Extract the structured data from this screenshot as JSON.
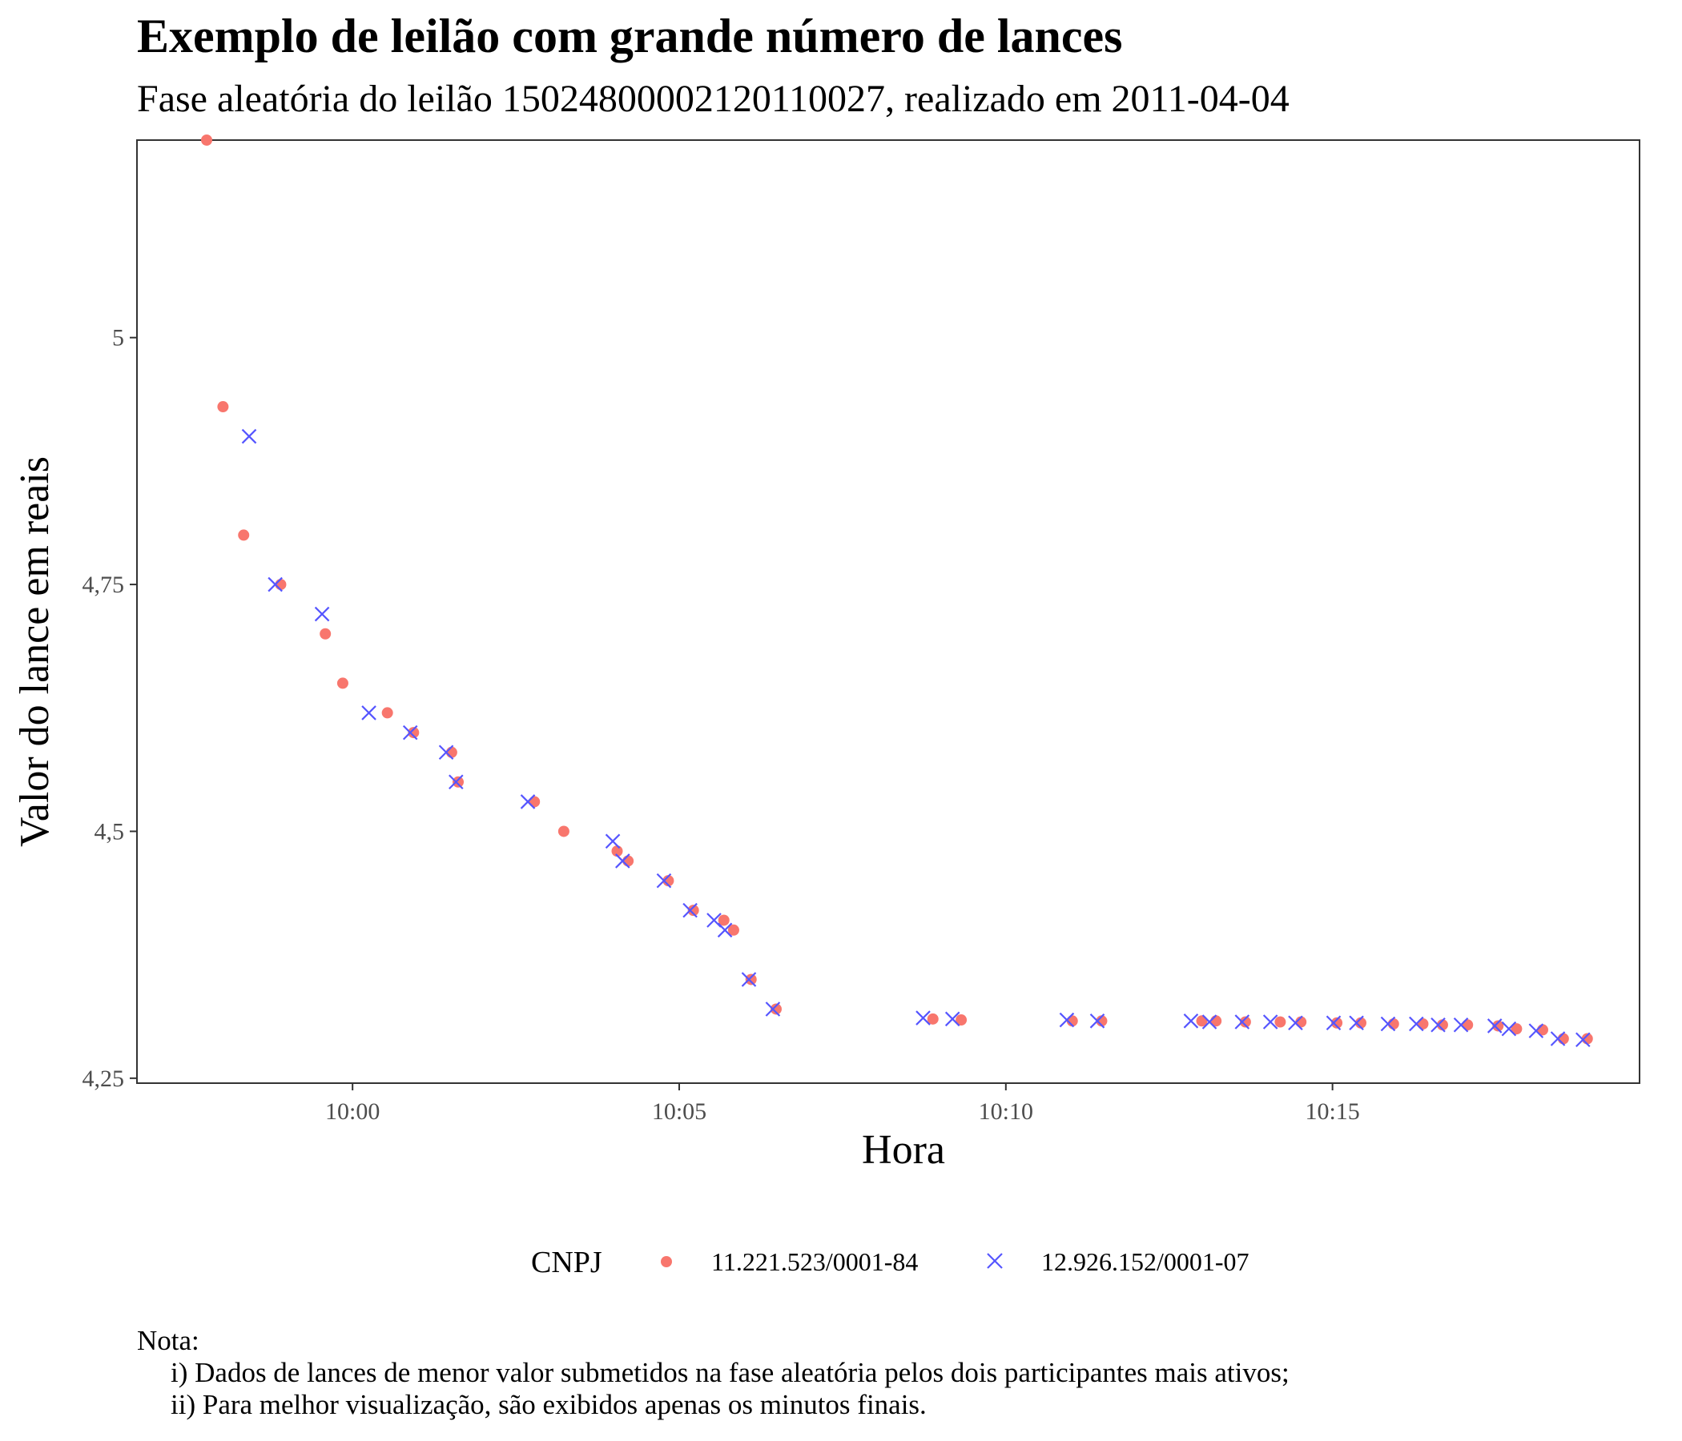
{
  "title": "Exemplo de leilão com grande número de lances",
  "subtitle": "Fase aleatória do leilão 15024800002120110027, realizado em 2011-04-04",
  "note": {
    "heading": "Nota:",
    "lines": [
      "i) Dados de lances de menor valor submetidos na fase aleatória pelos dois participantes mais ativos;",
      "ii) Para melhor visualização, são exibidos apenas os minutos finais."
    ]
  },
  "colors": {
    "series1": "#F8766D",
    "series2": "#5555FF",
    "panel_border": "#333333"
  },
  "chart_data": {
    "type": "scatter",
    "xlabel": "Hora",
    "ylabel": "Valor do lance em reais",
    "x_ticks": [
      "10:00",
      "10:05",
      "10:10",
      "10:15"
    ],
    "y_ticks": [
      "4,25",
      "4,5",
      "4,75",
      "5"
    ],
    "xlim": [
      "09:56:42",
      "10:19:42"
    ],
    "ylim": [
      4.245,
      5.2
    ],
    "grid": false,
    "legend": {
      "title": "CNPJ",
      "position": "bottom"
    },
    "series": [
      {
        "name": "11.221.523/0001-84",
        "marker": "circle",
        "points": [
          [
            "09:57:46",
            5.2
          ],
          [
            "09:58:01",
            4.93
          ],
          [
            "09:58:20",
            4.8
          ],
          [
            "09:58:54",
            4.75
          ],
          [
            "09:59:35",
            4.7
          ],
          [
            "09:59:51",
            4.65
          ],
          [
            "10:00:32",
            4.62
          ],
          [
            "10:00:56",
            4.6
          ],
          [
            "10:01:31",
            4.58
          ],
          [
            "10:01:37",
            4.55
          ],
          [
            "10:02:47",
            4.53
          ],
          [
            "10:03:14",
            4.5
          ],
          [
            "10:04:03",
            4.48
          ],
          [
            "10:04:13",
            4.47
          ],
          [
            "10:04:50",
            4.45
          ],
          [
            "10:05:13",
            4.42
          ],
          [
            "10:05:41",
            4.41
          ],
          [
            "10:05:50",
            4.4
          ],
          [
            "10:06:06",
            4.35
          ],
          [
            "10:06:29",
            4.32
          ],
          [
            "10:08:53",
            4.31
          ],
          [
            "10:09:19",
            4.309
          ],
          [
            "10:11:01",
            4.308
          ],
          [
            "10:11:28",
            4.308
          ],
          [
            "10:13:00",
            4.308
          ],
          [
            "10:13:13",
            4.308
          ],
          [
            "10:13:40",
            4.307
          ],
          [
            "10:14:12",
            4.307
          ],
          [
            "10:14:31",
            4.307
          ],
          [
            "10:15:04",
            4.306
          ],
          [
            "10:15:26",
            4.306
          ],
          [
            "10:15:56",
            4.305
          ],
          [
            "10:16:23",
            4.305
          ],
          [
            "10:16:41",
            4.304
          ],
          [
            "10:17:04",
            4.304
          ],
          [
            "10:17:32",
            4.303
          ],
          [
            "10:17:49",
            4.3
          ],
          [
            "10:18:13",
            4.299
          ],
          [
            "10:18:32",
            4.29
          ],
          [
            "10:18:54",
            4.29
          ]
        ]
      },
      {
        "name": "12.926.152/0001-07",
        "marker": "x",
        "points": [
          [
            "09:58:25",
            4.9
          ],
          [
            "09:58:49",
            4.75
          ],
          [
            "09:59:32",
            4.72
          ],
          [
            "10:00:15",
            4.62
          ],
          [
            "10:00:53",
            4.6
          ],
          [
            "10:01:26",
            4.58
          ],
          [
            "10:01:35",
            4.55
          ],
          [
            "10:02:41",
            4.53
          ],
          [
            "10:03:59",
            4.49
          ],
          [
            "10:04:08",
            4.47
          ],
          [
            "10:04:46",
            4.45
          ],
          [
            "10:05:10",
            4.42
          ],
          [
            "10:05:32",
            4.41
          ],
          [
            "10:05:42",
            4.4
          ],
          [
            "10:06:04",
            4.35
          ],
          [
            "10:06:26",
            4.32
          ],
          [
            "10:08:44",
            4.311
          ],
          [
            "10:09:11",
            4.31
          ],
          [
            "10:10:56",
            4.309
          ],
          [
            "10:11:24",
            4.308
          ],
          [
            "10:12:50",
            4.308
          ],
          [
            "10:13:07",
            4.307
          ],
          [
            "10:13:37",
            4.307
          ],
          [
            "10:14:03",
            4.307
          ],
          [
            "10:14:26",
            4.306
          ],
          [
            "10:15:01",
            4.306
          ],
          [
            "10:15:22",
            4.306
          ],
          [
            "10:15:51",
            4.305
          ],
          [
            "10:16:17",
            4.305
          ],
          [
            "10:16:37",
            4.304
          ],
          [
            "10:16:58",
            4.304
          ],
          [
            "10:17:29",
            4.303
          ],
          [
            "10:17:42",
            4.3
          ],
          [
            "10:18:07",
            4.298
          ],
          [
            "10:18:27",
            4.29
          ],
          [
            "10:18:50",
            4.289
          ]
        ]
      }
    ]
  }
}
